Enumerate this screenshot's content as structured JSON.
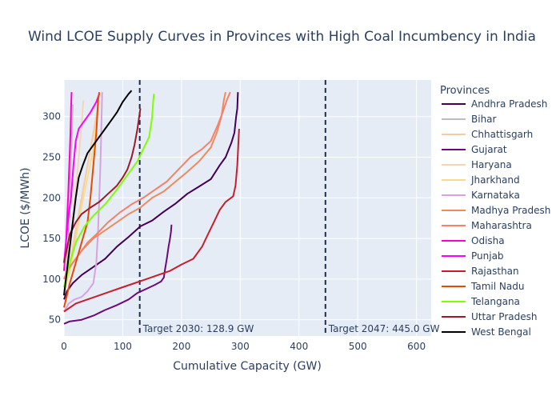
{
  "chart_data": {
    "type": "line",
    "title": "Wind LCOE Supply Curves in Provinces with High Coal Incumbency in India",
    "xlabel": "Cumulative Capacity (GW)",
    "ylabel": "LCOE ($/MWh)",
    "xlim": [
      0,
      625
    ],
    "ylim": [
      30,
      345
    ],
    "xticks": [
      0,
      100,
      200,
      300,
      400,
      500,
      600
    ],
    "yticks": [
      50,
      100,
      150,
      200,
      250,
      300
    ],
    "grid": true,
    "legend": {
      "title": "Provinces",
      "placement": "right"
    },
    "targets": [
      {
        "x": 128.9,
        "label": "Target 2030: 128.9 GW"
      },
      {
        "x": 445.0,
        "label": "Target 2047: 445.0 GW"
      }
    ],
    "series": [
      {
        "name": "Andhra Pradesh",
        "color": "#440154",
        "points": [
          [
            0,
            75
          ],
          [
            5,
            85
          ],
          [
            15,
            95
          ],
          [
            30,
            105
          ],
          [
            50,
            115
          ],
          [
            70,
            125
          ],
          [
            90,
            140
          ],
          [
            110,
            152
          ],
          [
            130,
            165
          ],
          [
            150,
            172
          ],
          [
            170,
            183
          ],
          [
            190,
            193
          ],
          [
            210,
            205
          ],
          [
            230,
            214
          ],
          [
            250,
            223
          ],
          [
            265,
            240
          ],
          [
            275,
            250
          ],
          [
            285,
            268
          ],
          [
            290,
            280
          ],
          [
            293,
            300
          ],
          [
            295,
            310
          ],
          [
            296,
            330
          ]
        ]
      },
      {
        "name": "Bihar",
        "color": "#bdbdbd",
        "points": [
          [
            0,
            80
          ],
          [
            5,
            120
          ],
          [
            8,
            160
          ],
          [
            10,
            200
          ],
          [
            12,
            250
          ],
          [
            14,
            290
          ],
          [
            15,
            315
          ]
        ]
      },
      {
        "name": "Chhattisgarh",
        "color": "#f6cba1",
        "points": [
          [
            0,
            85
          ],
          [
            10,
            120
          ],
          [
            20,
            160
          ],
          [
            30,
            200
          ],
          [
            40,
            240
          ],
          [
            50,
            280
          ],
          [
            55,
            300
          ],
          [
            60,
            320
          ]
        ]
      },
      {
        "name": "Gujarat",
        "color": "#6a0a7a",
        "points": [
          [
            0,
            45
          ],
          [
            10,
            48
          ],
          [
            30,
            50
          ],
          [
            50,
            55
          ],
          [
            70,
            62
          ],
          [
            90,
            68
          ],
          [
            110,
            75
          ],
          [
            125,
            83
          ],
          [
            140,
            88
          ],
          [
            155,
            93
          ],
          [
            165,
            97
          ],
          [
            170,
            102
          ],
          [
            172,
            112
          ],
          [
            175,
            125
          ],
          [
            178,
            140
          ],
          [
            180,
            148
          ],
          [
            182,
            158
          ],
          [
            183,
            167
          ]
        ]
      },
      {
        "name": "Haryana",
        "color": "#f6d5b6",
        "points": [
          [
            0,
            90
          ],
          [
            5,
            110
          ],
          [
            10,
            140
          ],
          [
            15,
            175
          ],
          [
            20,
            210
          ],
          [
            25,
            250
          ],
          [
            30,
            290
          ],
          [
            33,
            320
          ]
        ]
      },
      {
        "name": "Jharkhand",
        "color": "#fada8c",
        "points": [
          [
            0,
            85
          ],
          [
            10,
            110
          ],
          [
            20,
            150
          ],
          [
            30,
            190
          ],
          [
            40,
            225
          ],
          [
            50,
            260
          ],
          [
            55,
            290
          ],
          [
            58,
            315
          ]
        ]
      },
      {
        "name": "Karnataka",
        "color": "#d6a3e0",
        "points": [
          [
            0,
            60
          ],
          [
            8,
            70
          ],
          [
            18,
            75
          ],
          [
            30,
            78
          ],
          [
            40,
            85
          ],
          [
            50,
            95
          ],
          [
            55,
            120
          ],
          [
            58,
            160
          ],
          [
            60,
            200
          ],
          [
            62,
            240
          ],
          [
            63,
            270
          ],
          [
            64,
            300
          ],
          [
            65,
            330
          ]
        ]
      },
      {
        "name": "Madhya Pradesh",
        "color": "#f08a5d",
        "points": [
          [
            0,
            100
          ],
          [
            5,
            110
          ],
          [
            15,
            120
          ],
          [
            30,
            135
          ],
          [
            50,
            150
          ],
          [
            70,
            160
          ],
          [
            90,
            170
          ],
          [
            110,
            180
          ],
          [
            130,
            188
          ],
          [
            150,
            200
          ],
          [
            170,
            208
          ],
          [
            190,
            220
          ],
          [
            210,
            232
          ],
          [
            230,
            245
          ],
          [
            250,
            262
          ],
          [
            260,
            280
          ],
          [
            268,
            300
          ],
          [
            272,
            320
          ],
          [
            275,
            330
          ]
        ]
      },
      {
        "name": "Maharashtra",
        "color": "#f5816b",
        "points": [
          [
            0,
            100
          ],
          [
            10,
            115
          ],
          [
            25,
            130
          ],
          [
            40,
            145
          ],
          [
            55,
            155
          ],
          [
            75,
            170
          ],
          [
            95,
            182
          ],
          [
            115,
            192
          ],
          [
            135,
            200
          ],
          [
            155,
            210
          ],
          [
            175,
            220
          ],
          [
            195,
            235
          ],
          [
            215,
            250
          ],
          [
            235,
            260
          ],
          [
            250,
            270
          ],
          [
            262,
            290
          ],
          [
            270,
            305
          ],
          [
            277,
            320
          ],
          [
            283,
            330
          ]
        ]
      },
      {
        "name": "Odisha",
        "color": "#ff00cc",
        "points": [
          [
            0,
            110
          ],
          [
            3,
            140
          ],
          [
            5,
            170
          ],
          [
            7,
            200
          ],
          [
            9,
            240
          ],
          [
            11,
            280
          ],
          [
            12,
            310
          ],
          [
            13,
            330
          ]
        ]
      },
      {
        "name": "Punjab",
        "color": "#ff00ff",
        "points": [
          [
            0,
            120
          ],
          [
            4,
            150
          ],
          [
            8,
            180
          ],
          [
            12,
            200
          ],
          [
            16,
            240
          ],
          [
            20,
            270
          ],
          [
            25,
            285
          ],
          [
            35,
            295
          ],
          [
            45,
            305
          ],
          [
            55,
            318
          ],
          [
            60,
            328
          ]
        ]
      },
      {
        "name": "Rajasthan",
        "color": "#c71e2d",
        "points": [
          [
            0,
            60
          ],
          [
            20,
            70
          ],
          [
            40,
            75
          ],
          [
            60,
            80
          ],
          [
            80,
            85
          ],
          [
            100,
            90
          ],
          [
            120,
            95
          ],
          [
            140,
            100
          ],
          [
            160,
            105
          ],
          [
            180,
            110
          ],
          [
            200,
            118
          ],
          [
            220,
            125
          ],
          [
            235,
            140
          ],
          [
            245,
            155
          ],
          [
            255,
            170
          ],
          [
            265,
            185
          ],
          [
            275,
            195
          ],
          [
            288,
            202
          ],
          [
            292,
            215
          ],
          [
            295,
            240
          ],
          [
            297,
            270
          ],
          [
            298,
            285
          ]
        ]
      },
      {
        "name": "Tamil Nadu",
        "color": "#e64a00",
        "points": [
          [
            0,
            65
          ],
          [
            10,
            95
          ],
          [
            20,
            120
          ],
          [
            30,
            145
          ],
          [
            40,
            170
          ],
          [
            45,
            200
          ],
          [
            50,
            240
          ],
          [
            55,
            280
          ],
          [
            58,
            320
          ],
          [
            60,
            330
          ]
        ]
      },
      {
        "name": "Telangana",
        "color": "#7fff00",
        "points": [
          [
            0,
            90
          ],
          [
            10,
            120
          ],
          [
            20,
            145
          ],
          [
            35,
            165
          ],
          [
            50,
            178
          ],
          [
            70,
            192
          ],
          [
            90,
            210
          ],
          [
            110,
            230
          ],
          [
            125,
            245
          ],
          [
            135,
            260
          ],
          [
            145,
            275
          ],
          [
            150,
            300
          ],
          [
            152,
            320
          ],
          [
            153,
            328
          ]
        ]
      },
      {
        "name": "Uttar Pradesh",
        "color": "#9c1a2a",
        "points": [
          [
            0,
            120
          ],
          [
            10,
            155
          ],
          [
            20,
            170
          ],
          [
            30,
            180
          ],
          [
            45,
            188
          ],
          [
            60,
            195
          ],
          [
            75,
            205
          ],
          [
            90,
            215
          ],
          [
            100,
            225
          ],
          [
            108,
            235
          ],
          [
            115,
            250
          ],
          [
            120,
            265
          ],
          [
            125,
            285
          ],
          [
            128,
            300
          ],
          [
            130,
            310
          ]
        ]
      },
      {
        "name": "West Bengal",
        "color": "#000000",
        "points": [
          [
            0,
            80
          ],
          [
            5,
            110
          ],
          [
            10,
            140
          ],
          [
            15,
            170
          ],
          [
            20,
            200
          ],
          [
            25,
            225
          ],
          [
            32,
            240
          ],
          [
            40,
            255
          ],
          [
            50,
            265
          ],
          [
            60,
            275
          ],
          [
            70,
            285
          ],
          [
            80,
            295
          ],
          [
            90,
            305
          ],
          [
            100,
            318
          ],
          [
            110,
            328
          ],
          [
            115,
            332
          ]
        ]
      }
    ]
  }
}
